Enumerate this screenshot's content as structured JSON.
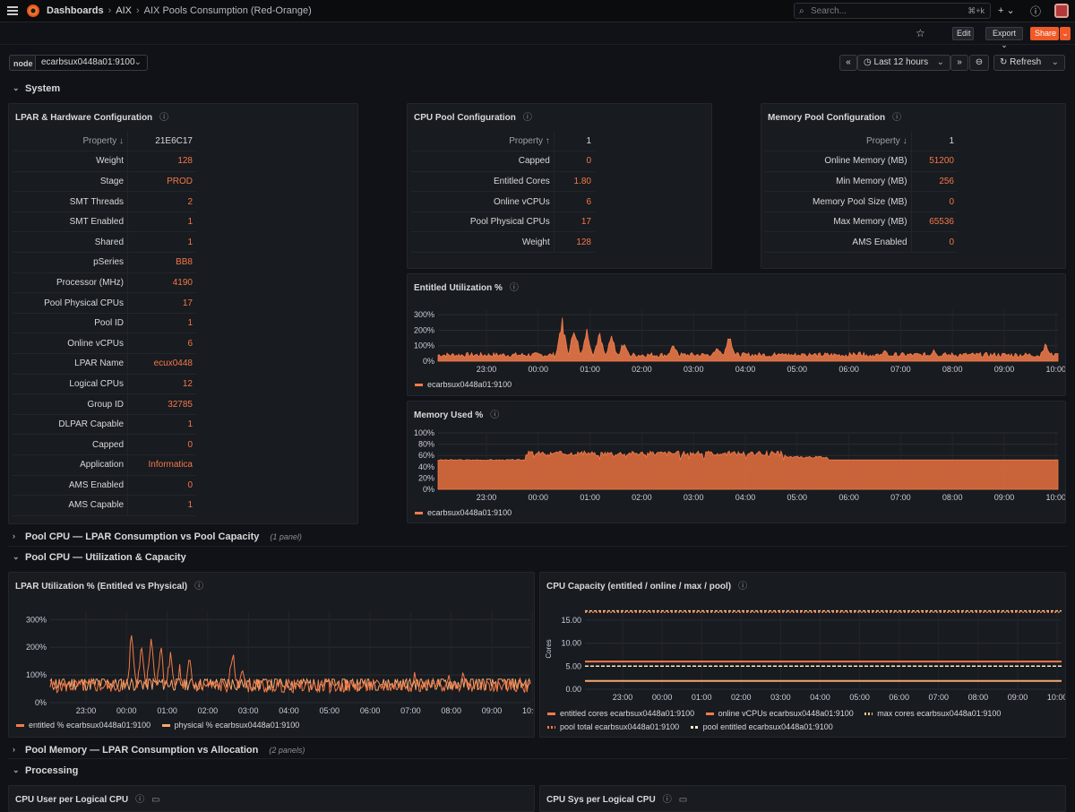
{
  "topbar": {
    "breadcrumbs": [
      "Dashboards",
      "AIX",
      "AIX Pools Consumption (Red-Orange)"
    ],
    "search_placeholder": "Search...",
    "search_shortcut": "⌘+k"
  },
  "actions": {
    "edit": "Edit",
    "export": "Export",
    "share": "Share"
  },
  "variables": {
    "node_label": "node",
    "node_value": "ecarbsux0448a01:9100"
  },
  "time": {
    "range": "Last 12 hours",
    "refresh": "Refresh"
  },
  "rows": {
    "system": "System ",
    "pool_cpu_consumption": "Pool CPU — LPAR Consumption vs Pool Capacity",
    "pool_cpu_consumption_count": "(1 panel)",
    "pool_cpu_util": "Pool CPU — Utilization & Capacity",
    "pool_memory": "Pool Memory — LPAR Consumption vs Allocation",
    "pool_memory_count": "(2 panels)",
    "processing": "Processing"
  },
  "lpar": {
    "title": "LPAR & Hardware Configuration",
    "header_key": "Property ↓",
    "header_val": "21E6C17",
    "rows": [
      [
        "Weight",
        "128"
      ],
      [
        "Stage",
        "PROD"
      ],
      [
        "SMT Threads",
        "2"
      ],
      [
        "SMT Enabled",
        "1"
      ],
      [
        "Shared",
        "1"
      ],
      [
        "pSeries",
        "BB8"
      ],
      [
        "Processor (MHz)",
        "4190"
      ],
      [
        "Pool Physical CPUs",
        "17"
      ],
      [
        "Pool ID",
        "1"
      ],
      [
        "Online vCPUs",
        "6"
      ],
      [
        "LPAR Name",
        "ecux0448"
      ],
      [
        "Logical CPUs",
        "12"
      ],
      [
        "Group ID",
        "32785"
      ],
      [
        "DLPAR Capable",
        "1"
      ],
      [
        "Capped",
        "0"
      ],
      [
        "Application",
        "Informatica"
      ],
      [
        "AMS Enabled",
        "0"
      ],
      [
        "AMS Capable",
        "1"
      ]
    ]
  },
  "cpupool": {
    "title": "CPU Pool Configuration",
    "header_key": "Property ↑",
    "header_val": "1",
    "rows": [
      [
        "Capped",
        "0"
      ],
      [
        "Entitled Cores",
        "1.80"
      ],
      [
        "Online vCPUs",
        "6"
      ],
      [
        "Pool Physical CPUs",
        "17"
      ],
      [
        "Weight",
        "128"
      ]
    ]
  },
  "mempool": {
    "title": "Memory Pool Configuration",
    "header_key": "Property ↓",
    "header_val": "1",
    "rows": [
      [
        "Online Memory (MB)",
        "51200"
      ],
      [
        "Min Memory (MB)",
        "256"
      ],
      [
        "Memory Pool Size (MB)",
        "0"
      ],
      [
        "Max Memory (MB)",
        "65536"
      ],
      [
        "AMS Enabled",
        "0"
      ]
    ]
  },
  "colors": {
    "accent": "#f47b4a",
    "series2": "#f8a76e",
    "bg": "#181b1f"
  },
  "time_ticks": [
    "23:00",
    "00:00",
    "01:00",
    "02:00",
    "03:00",
    "04:00",
    "05:00",
    "06:00",
    "07:00",
    "08:00",
    "09:00",
    "10:00"
  ],
  "chart_data": [
    {
      "type": "area",
      "title": "Entitled Utilization %",
      "y_ticks": [
        "0%",
        "100%",
        "200%",
        "300%"
      ],
      "ylim": [
        0,
        330
      ],
      "legend": [
        "ecarbsux0448a01:9100"
      ],
      "series": [
        {
          "name": "ecarbsux0448a01:9100",
          "baseline": 40,
          "peaks": [
            [
              0.2,
              300
            ],
            [
              0.22,
              250
            ],
            [
              0.24,
              230
            ],
            [
              0.26,
              200
            ],
            [
              0.28,
              180
            ],
            [
              0.3,
              150
            ],
            [
              0.38,
              120
            ],
            [
              0.45,
              110
            ],
            [
              0.47,
              200
            ],
            [
              0.55,
              70
            ],
            [
              0.6,
              60
            ],
            [
              0.68,
              70
            ],
            [
              0.72,
              80
            ],
            [
              0.8,
              90
            ],
            [
              0.98,
              120
            ]
          ]
        }
      ]
    },
    {
      "type": "area",
      "title": "Memory Used %",
      "y_ticks": [
        "0%",
        "20%",
        "40%",
        "60%",
        "80%",
        "100%"
      ],
      "ylim": [
        0,
        100
      ],
      "legend": [
        "ecarbsux0448a01:9100"
      ],
      "series": [
        {
          "name": "ecarbsux0448a01:9100",
          "baseline": 52,
          "peaks": [
            [
              0.15,
              58
            ],
            [
              0.19,
              70
            ],
            [
              0.3,
              72
            ],
            [
              0.4,
              70
            ],
            [
              0.5,
              65
            ],
            [
              0.55,
              58
            ],
            [
              0.6,
              55
            ],
            [
              0.98,
              54
            ]
          ]
        }
      ]
    },
    {
      "type": "line",
      "title": "LPAR Utilization % (Entitled vs Physical)",
      "y_ticks": [
        "0%",
        "100%",
        "200%",
        "300%"
      ],
      "ylim": [
        0,
        330
      ],
      "legend": [
        "entitled % ecarbsux0448a01:9100",
        "physical % ecarbsux0448a01:9100"
      ],
      "series": [
        {
          "name": "entitled % ecarbsux0448a01:9100",
          "baseline": 60,
          "peaks": [
            [
              0.17,
              310
            ],
            [
              0.19,
              260
            ],
            [
              0.21,
              280
            ],
            [
              0.23,
              240
            ],
            [
              0.25,
              200
            ],
            [
              0.27,
              150
            ],
            [
              0.29,
              180
            ],
            [
              0.38,
              230
            ],
            [
              0.4,
              150
            ],
            [
              0.76,
              130
            ],
            [
              0.83,
              110
            ],
            [
              0.86,
              120
            ],
            [
              0.9,
              80
            ],
            [
              0.98,
              100
            ]
          ]
        },
        {
          "name": "physical % ecarbsux0448a01:9100",
          "baseline": 70,
          "peaks": []
        }
      ]
    },
    {
      "type": "line",
      "title": "CPU Capacity (entitled / online / max / pool)",
      "ylabel": "Cores",
      "y_ticks": [
        "0.00",
        "5.00",
        "10.00",
        "15.00"
      ],
      "ylim": [
        0,
        17.5
      ],
      "legend": [
        "entitled cores ecarbsux0448a01:9100",
        "online vCPUs ecarbsux0448a01:9100",
        "max cores ecarbsux0448a01:9100",
        "pool total ecarbsux0448a01:9100",
        "pool entitled ecarbsux0448a01:9100"
      ],
      "series": [
        {
          "name": "entitled cores ecarbsux0448a01:9100",
          "constant": 1.8
        },
        {
          "name": "online vCPUs ecarbsux0448a01:9100",
          "constant": 6
        },
        {
          "name": "max cores ecarbsux0448a01:9100",
          "constant": 17
        },
        {
          "name": "pool total ecarbsux0448a01:9100",
          "constant": 17
        },
        {
          "name": "pool entitled ecarbsux0448a01:9100",
          "constant": 5
        }
      ]
    }
  ],
  "processing": {
    "cpu_user": "CPU User per Logical CPU",
    "cpu_sys": "CPU Sys per Logical CPU"
  }
}
